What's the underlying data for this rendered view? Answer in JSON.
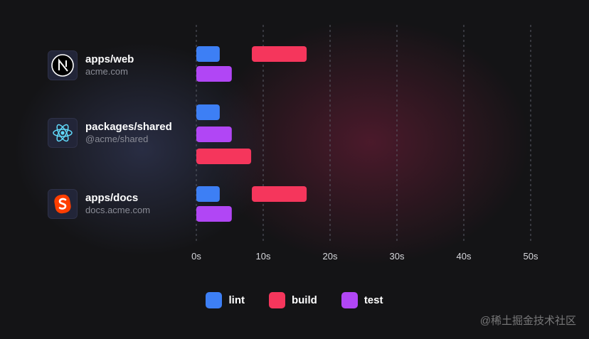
{
  "packages": [
    {
      "name": "apps/web",
      "subtitle": "acme.com",
      "icon": "nextjs-icon"
    },
    {
      "name": "packages/shared",
      "subtitle": "@acme/shared",
      "icon": "react-icon"
    },
    {
      "name": "apps/docs",
      "subtitle": "docs.acme.com",
      "icon": "svelte-icon"
    }
  ],
  "colors": {
    "lint": "#3d7ff5",
    "build": "#f5365c",
    "test": "#b146f5",
    "background": "#141416"
  },
  "legend": [
    {
      "label": "lint",
      "color": "#3d7ff5"
    },
    {
      "label": "build",
      "color": "#f5365c"
    },
    {
      "label": "test",
      "color": "#b146f5"
    }
  ],
  "watermark": "@稀土掘金技术社区",
  "chart_data": {
    "type": "bar",
    "orientation": "horizontal-timeline",
    "title": "",
    "xlabel": "",
    "ylabel": "",
    "xlim": [
      0,
      50
    ],
    "x_ticks": [
      "0s",
      "10s",
      "20s",
      "30s",
      "40s",
      "50s"
    ],
    "grid": "vertical dashed",
    "legend_position": "bottom-center",
    "groups": [
      {
        "package": "apps/web",
        "tasks": [
          {
            "task": "lint",
            "start": 0,
            "end": 3.5
          },
          {
            "task": "build",
            "start": 8.3,
            "end": 16.5
          },
          {
            "task": "test",
            "start": 0,
            "end": 5.3
          }
        ]
      },
      {
        "package": "packages/shared",
        "tasks": [
          {
            "task": "lint",
            "start": 0,
            "end": 3.5
          },
          {
            "task": "test",
            "start": 0,
            "end": 5.3
          },
          {
            "task": "build",
            "start": 0,
            "end": 8.2
          }
        ]
      },
      {
        "package": "apps/docs",
        "tasks": [
          {
            "task": "lint",
            "start": 0,
            "end": 3.5
          },
          {
            "task": "build",
            "start": 8.3,
            "end": 16.5
          },
          {
            "task": "test",
            "start": 0,
            "end": 5.3
          }
        ]
      }
    ]
  }
}
